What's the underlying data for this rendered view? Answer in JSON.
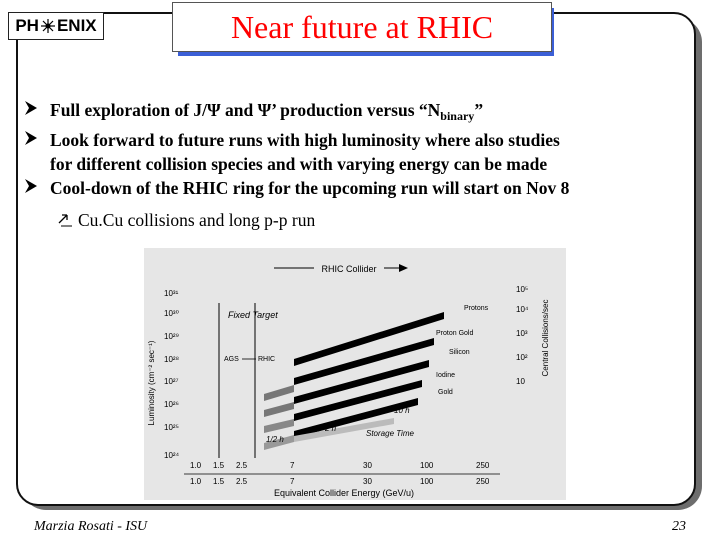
{
  "header": {
    "logo_part1": "PH",
    "logo_part2": "ENIX",
    "title": "Near future at RHIC"
  },
  "bullets": {
    "b1_prefix": "Full exploration of J/Ψ and Ψ’ production versus “N",
    "b1_sub": "binary",
    "b1_suffix": "”",
    "b2_line1": "Look forward to future runs with high luminosity where also studies",
    "b2_line2": "for different collision species and with varying energy can be made",
    "b3": "Cool-down of the RHIC ring for the upcoming run will start on Nov 8",
    "sub1": "Cu.Cu collisions and long p-p run"
  },
  "figure": {
    "top_label": "RHIC Collider",
    "fixed_target": "Fixed Target",
    "ags": "AGS",
    "rhic": "RHIC",
    "y_left_label": "Luminosity (cm⁻² sec⁻¹)",
    "y_right_label": "Central Collisions/sec",
    "x_label": "Equivalent Collider Energy (GeV/u)",
    "left_ticks": [
      "10³¹",
      "10³⁰",
      "10²⁹",
      "10²⁸",
      "10²⁷",
      "10²⁶",
      "10²⁵",
      "10²⁴"
    ],
    "right_ticks": [
      "10⁵",
      "10⁴",
      "10³",
      "10²",
      "10"
    ],
    "x_ticks_top": [
      "1.0",
      "1.5",
      "2.5",
      "7",
      "30",
      "100",
      "250"
    ],
    "x_ticks_bottom": [
      "1.0",
      "1.5",
      "2.5",
      "7",
      "30",
      "100",
      "250"
    ],
    "species": [
      "Protons",
      "Proton Gold",
      "Silicon",
      "Iodine",
      "Gold"
    ],
    "time_labels": [
      "10 h",
      "2 h",
      "Storage Time",
      "1/2 h"
    ]
  },
  "footer": {
    "author": "Marzia Rosati -  ISU",
    "page": "23"
  },
  "colors": {
    "title_red": "#ff0000",
    "title_shadow": "#3b5fd6",
    "bullet_arrow": "#000000"
  }
}
